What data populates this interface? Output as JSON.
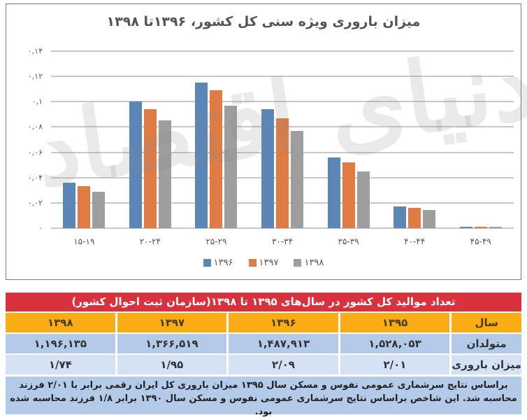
{
  "chart_data": {
    "type": "bar",
    "title": "میزان باروری ویژه سنی کل کشور، ۱۳۹۶تا ۱۳۹۸",
    "xlabel": "",
    "ylabel": "",
    "ylim": [
      0,
      0.14
    ],
    "yticks": [
      0,
      0.02,
      0.04,
      0.06,
      0.08,
      0.1,
      0.12,
      0.14
    ],
    "ytick_labels": [
      "۰",
      "۰,۰۲",
      "۰,۰۴",
      "۰,۰۶",
      "۰,۰۸",
      "۰,۱",
      "۰,۱۲",
      "۰,۱۴"
    ],
    "grid": true,
    "legend_position": "bottom",
    "categories": [
      "15-19",
      "20-24",
      "25-29",
      "30-34",
      "35-39",
      "40-44",
      "45-49"
    ],
    "category_labels": [
      "۱۵-۱۹",
      "۲۰-۲۴",
      "۲۵-۲۹",
      "۳۰-۳۴",
      "۳۵-۳۹",
      "۴۰-۴۴",
      "۴۵-۴۹"
    ],
    "series": [
      {
        "name": "۱۳۹۶",
        "color": "#5b86b6",
        "values": [
          0.036,
          0.1,
          0.115,
          0.094,
          0.056,
          0.017,
          0.001
        ]
      },
      {
        "name": "۱۳۹۷",
        "color": "#e07b43",
        "values": [
          0.033,
          0.094,
          0.109,
          0.087,
          0.052,
          0.016,
          0.001
        ]
      },
      {
        "name": "۱۳۹۸",
        "color": "#9e9e9e",
        "values": [
          0.029,
          0.085,
          0.097,
          0.077,
          0.045,
          0.0145,
          0.001
        ]
      }
    ]
  },
  "watermark": {
    "text": "دنیای اقتصاد"
  },
  "table": {
    "title": "تعداد موالید کل کشور در سال‌های ۱۳۹۵ تا ۱۳۹۸(سازمان ثبت احوال کشور)",
    "header": {
      "label": "سال",
      "values": [
        "۱۳۹۵",
        "۱۳۹۶",
        "۱۳۹۷",
        "۱۳۹۸"
      ]
    },
    "births": {
      "label": "متولدان",
      "values": [
        "۱,۵۲۸,۰۵۳",
        "۱,۴۸۷,۹۱۳",
        "۱,۳۶۶,۵۱۹",
        "۱,۱۹۶,۱۳۵"
      ]
    },
    "rate": {
      "label": "میزان باروری",
      "values": [
        "۲/۰۱",
        "۲/۰۹",
        "۱/۹۵",
        "۱/۷۴"
      ]
    },
    "footnote": "براساس نتایج سرشماری عمومی نفوس و مسکن سال ۱۳۹۵ میزان باروری کل ایران رقمی برابر با ۲/۰۱ فرزند محاسبه شد. این شاخص براساس نتایج سرشماری عمومی نفوس و مسکن سال ۱۳۹۰ برابر ۱/۸ فرزند محاسبه شده بود."
  },
  "colors": {
    "title_bar": "#d8323f",
    "year_row": "#f9ac13",
    "births_row": "#b3cbe8",
    "rate_row": "#d3e2f4"
  }
}
